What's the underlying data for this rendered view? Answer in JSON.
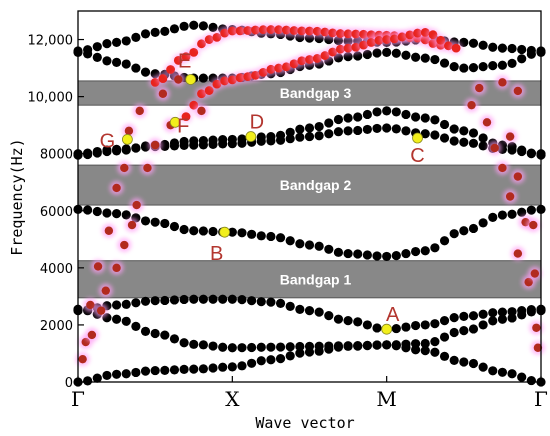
{
  "chart_data": {
    "type": "scatter",
    "title": "",
    "xlabel": "Wave vector",
    "ylabel": "Frequency(Hz)",
    "ylim": [
      0,
      13000
    ],
    "yticks": [
      0,
      2000,
      4000,
      6000,
      8000,
      10000,
      12000
    ],
    "ytick_labels": [
      "0",
      "2000",
      "4000",
      "6000",
      "8000",
      "10,000",
      "12,000"
    ],
    "x_points": [
      "Γ",
      "X",
      "M",
      "Γ"
    ],
    "x_segments": [
      {
        "from": "Γ",
        "to": "X",
        "length": 1
      },
      {
        "from": "X",
        "to": "M",
        "length": 1
      },
      {
        "from": "M",
        "to": "Γ",
        "length": 1.0
      }
    ],
    "grid": false,
    "colors": {
      "bands": "#000000",
      "highlight_bands": "#e8231d",
      "measured_points": "#b22a1e",
      "marker_points": "#f2ef1c",
      "point_glow": "#ff9ff4",
      "bandgap_fill": "#888888"
    },
    "bandgaps": [
      {
        "name": "Bandgap 1",
        "range": [
          2950,
          4250
        ]
      },
      {
        "name": "Bandgap 2",
        "range": [
          6200,
          7600
        ]
      },
      {
        "name": "Bandgap 3",
        "range": [
          9700,
          10550
        ]
      }
    ],
    "bands": [
      {
        "points": [
          {
            "x": 0.0,
            "y": 0
          },
          {
            "x": 0.25,
            "y": 270
          },
          {
            "x": 0.5,
            "y": 400
          },
          {
            "x": 0.75,
            "y": 450
          },
          {
            "x": 1.0,
            "y": 530
          },
          {
            "x": 1.25,
            "y": 780
          },
          {
            "x": 1.5,
            "y": 1050
          },
          {
            "x": 1.75,
            "y": 1250
          },
          {
            "x": 2.0,
            "y": 1300
          },
          {
            "x": 2.25,
            "y": 1100
          },
          {
            "x": 2.5,
            "y": 700
          },
          {
            "x": 2.75,
            "y": 340
          },
          {
            "x": 3.0,
            "y": 0
          }
        ]
      },
      {
        "points": [
          {
            "x": 0.0,
            "y": 2550
          },
          {
            "x": 0.25,
            "y": 2200
          },
          {
            "x": 0.5,
            "y": 1700
          },
          {
            "x": 0.75,
            "y": 1320
          },
          {
            "x": 1.0,
            "y": 1200
          },
          {
            "x": 1.25,
            "y": 1220
          },
          {
            "x": 1.5,
            "y": 1250
          },
          {
            "x": 1.75,
            "y": 1270
          },
          {
            "x": 2.0,
            "y": 1300
          },
          {
            "x": 2.25,
            "y": 1350
          },
          {
            "x": 2.5,
            "y": 1800
          },
          {
            "x": 2.75,
            "y": 2200
          },
          {
            "x": 3.0,
            "y": 2500
          }
        ]
      },
      {
        "points": [
          {
            "x": 0.0,
            "y": 2500
          },
          {
            "x": 0.25,
            "y": 2700
          },
          {
            "x": 0.5,
            "y": 2850
          },
          {
            "x": 0.75,
            "y": 2900
          },
          {
            "x": 1.0,
            "y": 2900
          },
          {
            "x": 1.25,
            "y": 2800
          },
          {
            "x": 1.5,
            "y": 2500
          },
          {
            "x": 1.75,
            "y": 2150
          },
          {
            "x": 2.0,
            "y": 1850
          },
          {
            "x": 2.25,
            "y": 2000
          },
          {
            "x": 2.5,
            "y": 2300
          },
          {
            "x": 2.75,
            "y": 2450
          },
          {
            "x": 3.0,
            "y": 2550
          }
        ]
      },
      {
        "points": [
          {
            "x": 0.0,
            "y": 6050
          },
          {
            "x": 0.25,
            "y": 5900
          },
          {
            "x": 0.5,
            "y": 5600
          },
          {
            "x": 0.75,
            "y": 5300
          },
          {
            "x": 1.0,
            "y": 5250
          },
          {
            "x": 1.25,
            "y": 5100
          },
          {
            "x": 1.5,
            "y": 4800
          },
          {
            "x": 1.75,
            "y": 4500
          },
          {
            "x": 2.0,
            "y": 4400
          },
          {
            "x": 2.25,
            "y": 4600
          },
          {
            "x": 2.5,
            "y": 5300
          },
          {
            "x": 2.75,
            "y": 5850
          },
          {
            "x": 3.0,
            "y": 6050
          }
        ]
      },
      {
        "points": [
          {
            "x": 0.0,
            "y": 7950
          },
          {
            "x": 0.25,
            "y": 8100
          },
          {
            "x": 0.5,
            "y": 8300
          },
          {
            "x": 0.75,
            "y": 8450
          },
          {
            "x": 1.0,
            "y": 8500
          },
          {
            "x": 1.25,
            "y": 8600
          },
          {
            "x": 1.5,
            "y": 8900
          },
          {
            "x": 1.75,
            "y": 9250
          },
          {
            "x": 2.0,
            "y": 9500
          },
          {
            "x": 2.25,
            "y": 9250
          },
          {
            "x": 2.5,
            "y": 8800
          },
          {
            "x": 2.75,
            "y": 8300
          },
          {
            "x": 3.0,
            "y": 7950
          }
        ]
      },
      {
        "points": [
          {
            "x": 0.0,
            "y": 8000
          },
          {
            "x": 0.25,
            "y": 8150
          },
          {
            "x": 0.5,
            "y": 8250
          },
          {
            "x": 0.75,
            "y": 8300
          },
          {
            "x": 1.0,
            "y": 8350
          },
          {
            "x": 1.25,
            "y": 8450
          },
          {
            "x": 1.5,
            "y": 8600
          },
          {
            "x": 1.75,
            "y": 8800
          },
          {
            "x": 2.0,
            "y": 8900
          },
          {
            "x": 2.25,
            "y": 8700
          },
          {
            "x": 2.5,
            "y": 8400
          },
          {
            "x": 2.75,
            "y": 8150
          },
          {
            "x": 3.0,
            "y": 8000
          }
        ]
      },
      {
        "points": [
          {
            "x": 0.0,
            "y": 11550
          },
          {
            "x": 0.25,
            "y": 11200
          },
          {
            "x": 0.5,
            "y": 10800
          },
          {
            "x": 0.75,
            "y": 10650
          },
          {
            "x": 1.0,
            "y": 10650
          },
          {
            "x": 1.25,
            "y": 10800
          },
          {
            "x": 1.5,
            "y": 11100
          },
          {
            "x": 1.75,
            "y": 11400
          },
          {
            "x": 2.0,
            "y": 11550
          },
          {
            "x": 2.25,
            "y": 11350
          },
          {
            "x": 2.5,
            "y": 11000
          },
          {
            "x": 2.75,
            "y": 11100
          },
          {
            "x": 3.0,
            "y": 11550
          }
        ]
      },
      {
        "points": [
          {
            "x": 0.0,
            "y": 11600
          },
          {
            "x": 0.25,
            "y": 11900
          },
          {
            "x": 0.5,
            "y": 12250
          },
          {
            "x": 0.75,
            "y": 12500
          },
          {
            "x": 1.0,
            "y": 12350
          },
          {
            "x": 1.25,
            "y": 12200
          },
          {
            "x": 1.5,
            "y": 12050
          },
          {
            "x": 1.75,
            "y": 11950
          },
          {
            "x": 2.0,
            "y": 11900
          },
          {
            "x": 2.25,
            "y": 12000
          },
          {
            "x": 2.5,
            "y": 11900
          },
          {
            "x": 2.75,
            "y": 11700
          },
          {
            "x": 3.0,
            "y": 11600
          }
        ]
      }
    ],
    "highlight_bands": [
      {
        "points": [
          {
            "x": 0.5,
            "y": 10500
          },
          {
            "x": 0.7,
            "y": 11400
          },
          {
            "x": 0.85,
            "y": 12000
          },
          {
            "x": 1.0,
            "y": 12300
          },
          {
            "x": 1.25,
            "y": 12350
          },
          {
            "x": 1.5,
            "y": 12300
          },
          {
            "x": 1.75,
            "y": 12200
          },
          {
            "x": 2.0,
            "y": 12150
          },
          {
            "x": 2.2,
            "y": 12050
          },
          {
            "x": 2.35,
            "y": 11800
          }
        ]
      },
      {
        "points": [
          {
            "x": 0.7,
            "y": 9300
          },
          {
            "x": 0.8,
            "y": 10100
          },
          {
            "x": 0.95,
            "y": 10550
          },
          {
            "x": 1.1,
            "y": 10700
          },
          {
            "x": 1.3,
            "y": 11000
          },
          {
            "x": 1.5,
            "y": 11300
          },
          {
            "x": 1.75,
            "y": 11700
          },
          {
            "x": 2.0,
            "y": 12000
          },
          {
            "x": 2.25,
            "y": 12250
          },
          {
            "x": 2.45,
            "y": 11700
          }
        ]
      }
    ],
    "measured_points": [
      {
        "x": 0.03,
        "y": 800
      },
      {
        "x": 0.05,
        "y": 1400
      },
      {
        "x": 0.09,
        "y": 1650
      },
      {
        "x": 0.08,
        "y": 2700
      },
      {
        "x": 0.15,
        "y": 2500
      },
      {
        "x": 0.18,
        "y": 3200
      },
      {
        "x": 0.13,
        "y": 4050
      },
      {
        "x": 0.25,
        "y": 4000
      },
      {
        "x": 0.3,
        "y": 4800
      },
      {
        "x": 0.2,
        "y": 5300
      },
      {
        "x": 0.35,
        "y": 5500
      },
      {
        "x": 0.38,
        "y": 6200
      },
      {
        "x": 0.25,
        "y": 6800
      },
      {
        "x": 0.3,
        "y": 7500
      },
      {
        "x": 0.45,
        "y": 7500
      },
      {
        "x": 0.5,
        "y": 8300
      },
      {
        "x": 0.33,
        "y": 8800
      },
      {
        "x": 0.4,
        "y": 9500
      },
      {
        "x": 0.6,
        "y": 9000
      },
      {
        "x": 0.55,
        "y": 10100
      },
      {
        "x": 0.65,
        "y": 10600
      },
      {
        "x": 0.8,
        "y": 9500
      },
      {
        "x": 2.6,
        "y": 10300
      },
      {
        "x": 2.55,
        "y": 9700
      },
      {
        "x": 2.65,
        "y": 9100
      },
      {
        "x": 2.7,
        "y": 8200
      },
      {
        "x": 2.8,
        "y": 8600
      },
      {
        "x": 2.75,
        "y": 7500
      },
      {
        "x": 2.85,
        "y": 7200
      },
      {
        "x": 2.8,
        "y": 6500
      },
      {
        "x": 2.9,
        "y": 5600
      },
      {
        "x": 2.95,
        "y": 5500
      },
      {
        "x": 2.85,
        "y": 4500
      },
      {
        "x": 2.92,
        "y": 3500
      },
      {
        "x": 2.96,
        "y": 3800
      },
      {
        "x": 2.97,
        "y": 1900
      },
      {
        "x": 2.98,
        "y": 1200
      },
      {
        "x": 2.75,
        "y": 10500
      },
      {
        "x": 2.85,
        "y": 10200
      }
    ],
    "marked_points": [
      {
        "label": "A",
        "x": 2.0,
        "y": 1850
      },
      {
        "label": "B",
        "x": 0.95,
        "y": 5250
      },
      {
        "label": "C",
        "x": 2.2,
        "y": 8550
      },
      {
        "label": "D",
        "x": 1.12,
        "y": 8600
      },
      {
        "label": "E",
        "x": 0.73,
        "y": 10600
      },
      {
        "label": "F",
        "x": 0.63,
        "y": 9100
      },
      {
        "label": "G",
        "x": 0.32,
        "y": 8500
      }
    ]
  }
}
